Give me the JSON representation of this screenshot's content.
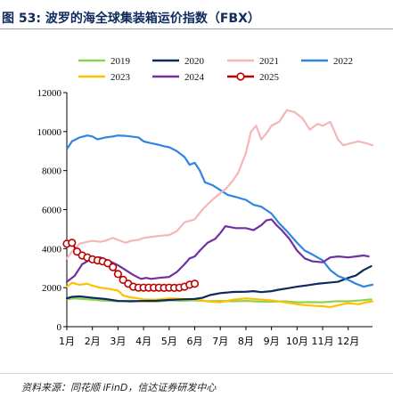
{
  "figure": {
    "title": "图 53:  波罗的海全球集装箱运价指数（FBX）",
    "source": "资料来源：同花顺 iFinD，信达证券研发中心"
  },
  "chart_data": {
    "type": "line",
    "title": "",
    "xlabel": "",
    "ylabel": "",
    "x_categories": [
      "1月",
      "2月",
      "3月",
      "4月",
      "5月",
      "6月",
      "7月",
      "8月",
      "9月",
      "10月",
      "11月",
      "12月"
    ],
    "x_domain": [
      1,
      12.95
    ],
    "ylim": [
      0,
      12000
    ],
    "yticks": [
      0,
      2000,
      4000,
      6000,
      8000,
      10000,
      12000
    ],
    "grid": false,
    "legend_position": "top",
    "series": [
      {
        "name": "2019",
        "color": "#92d050",
        "marker": "none",
        "points": [
          [
            1.0,
            1400
          ],
          [
            1.3,
            1450
          ],
          [
            1.6,
            1420
          ],
          [
            2.0,
            1380
          ],
          [
            2.4,
            1340
          ],
          [
            3.0,
            1300
          ],
          [
            3.5,
            1330
          ],
          [
            4.0,
            1300
          ],
          [
            4.5,
            1280
          ],
          [
            5.0,
            1350
          ],
          [
            5.5,
            1330
          ],
          [
            6.0,
            1350
          ],
          [
            6.5,
            1310
          ],
          [
            7.0,
            1320
          ],
          [
            7.5,
            1300
          ],
          [
            8.0,
            1320
          ],
          [
            8.5,
            1290
          ],
          [
            9.0,
            1280
          ],
          [
            9.5,
            1300
          ],
          [
            10.0,
            1250
          ],
          [
            10.5,
            1260
          ],
          [
            11.0,
            1250
          ],
          [
            11.5,
            1300
          ],
          [
            12.0,
            1300
          ],
          [
            12.5,
            1350
          ],
          [
            12.9,
            1400
          ]
        ]
      },
      {
        "name": "2020",
        "color": "#0d2a5e",
        "marker": "none",
        "points": [
          [
            1.0,
            1450
          ],
          [
            1.2,
            1530
          ],
          [
            1.5,
            1550
          ],
          [
            2.0,
            1480
          ],
          [
            2.5,
            1420
          ],
          [
            3.0,
            1320
          ],
          [
            3.5,
            1300
          ],
          [
            4.0,
            1320
          ],
          [
            4.5,
            1330
          ],
          [
            5.0,
            1370
          ],
          [
            5.5,
            1400
          ],
          [
            6.0,
            1420
          ],
          [
            6.3,
            1480
          ],
          [
            6.6,
            1620
          ],
          [
            7.0,
            1720
          ],
          [
            7.5,
            1780
          ],
          [
            8.0,
            1790
          ],
          [
            8.3,
            1820
          ],
          [
            8.6,
            1770
          ],
          [
            9.0,
            1820
          ],
          [
            9.3,
            1900
          ],
          [
            9.6,
            1960
          ],
          [
            10.0,
            2050
          ],
          [
            10.4,
            2120
          ],
          [
            10.8,
            2200
          ],
          [
            11.2,
            2250
          ],
          [
            11.6,
            2300
          ],
          [
            12.0,
            2500
          ],
          [
            12.3,
            2620
          ],
          [
            12.6,
            2900
          ],
          [
            12.9,
            3100
          ]
        ]
      },
      {
        "name": "2021",
        "color": "#f4b6b6",
        "marker": "none",
        "points": [
          [
            1.0,
            3500
          ],
          [
            1.2,
            3850
          ],
          [
            1.5,
            4250
          ],
          [
            1.8,
            4350
          ],
          [
            2.0,
            4400
          ],
          [
            2.3,
            4350
          ],
          [
            2.5,
            4400
          ],
          [
            2.8,
            4550
          ],
          [
            3.0,
            4450
          ],
          [
            3.3,
            4300
          ],
          [
            3.5,
            4400
          ],
          [
            3.8,
            4450
          ],
          [
            4.0,
            4550
          ],
          [
            4.3,
            4600
          ],
          [
            4.6,
            4650
          ],
          [
            5.0,
            4700
          ],
          [
            5.3,
            4900
          ],
          [
            5.6,
            5350
          ],
          [
            6.0,
            5500
          ],
          [
            6.3,
            6000
          ],
          [
            6.6,
            6400
          ],
          [
            7.0,
            6850
          ],
          [
            7.2,
            7050
          ],
          [
            7.5,
            7500
          ],
          [
            7.7,
            7900
          ],
          [
            8.0,
            8900
          ],
          [
            8.2,
            10000
          ],
          [
            8.4,
            10300
          ],
          [
            8.6,
            9600
          ],
          [
            8.8,
            9900
          ],
          [
            9.0,
            10300
          ],
          [
            9.3,
            10500
          ],
          [
            9.6,
            11100
          ],
          [
            9.9,
            11000
          ],
          [
            10.2,
            10700
          ],
          [
            10.5,
            10100
          ],
          [
            10.8,
            10400
          ],
          [
            11.0,
            10300
          ],
          [
            11.3,
            10500
          ],
          [
            11.6,
            9600
          ],
          [
            11.8,
            9300
          ],
          [
            12.1,
            9400
          ],
          [
            12.4,
            9500
          ],
          [
            12.7,
            9400
          ],
          [
            12.95,
            9300
          ]
        ]
      },
      {
        "name": "2022",
        "color": "#2e86de",
        "marker": "none",
        "points": [
          [
            1.0,
            9100
          ],
          [
            1.2,
            9500
          ],
          [
            1.5,
            9700
          ],
          [
            1.8,
            9800
          ],
          [
            2.0,
            9750
          ],
          [
            2.2,
            9600
          ],
          [
            2.5,
            9700
          ],
          [
            2.8,
            9750
          ],
          [
            3.0,
            9800
          ],
          [
            3.3,
            9780
          ],
          [
            3.5,
            9750
          ],
          [
            3.8,
            9700
          ],
          [
            4.0,
            9500
          ],
          [
            4.3,
            9400
          ],
          [
            4.5,
            9350
          ],
          [
            4.8,
            9250
          ],
          [
            5.0,
            9200
          ],
          [
            5.3,
            9000
          ],
          [
            5.6,
            8700
          ],
          [
            5.8,
            8300
          ],
          [
            6.0,
            8400
          ],
          [
            6.2,
            8000
          ],
          [
            6.4,
            7400
          ],
          [
            6.7,
            7250
          ],
          [
            7.0,
            7000
          ],
          [
            7.3,
            6750
          ],
          [
            7.6,
            6650
          ],
          [
            8.0,
            6500
          ],
          [
            8.3,
            6250
          ],
          [
            8.6,
            6150
          ],
          [
            9.0,
            5800
          ],
          [
            9.3,
            5300
          ],
          [
            9.6,
            4900
          ],
          [
            10.0,
            4300
          ],
          [
            10.3,
            3900
          ],
          [
            10.6,
            3700
          ],
          [
            11.0,
            3400
          ],
          [
            11.3,
            2900
          ],
          [
            11.6,
            2600
          ],
          [
            12.0,
            2400
          ],
          [
            12.3,
            2200
          ],
          [
            12.6,
            2050
          ],
          [
            12.95,
            2150
          ]
        ]
      },
      {
        "name": "2023",
        "color": "#ffc000",
        "marker": "none",
        "points": [
          [
            1.0,
            2050
          ],
          [
            1.2,
            2250
          ],
          [
            1.5,
            2150
          ],
          [
            1.8,
            2200
          ],
          [
            2.0,
            2100
          ],
          [
            2.3,
            2000
          ],
          [
            2.6,
            1950
          ],
          [
            3.0,
            1850
          ],
          [
            3.2,
            1600
          ],
          [
            3.5,
            1500
          ],
          [
            3.8,
            1450
          ],
          [
            4.0,
            1400
          ],
          [
            4.5,
            1380
          ],
          [
            5.0,
            1450
          ],
          [
            5.5,
            1420
          ],
          [
            6.0,
            1400
          ],
          [
            6.5,
            1300
          ],
          [
            7.0,
            1250
          ],
          [
            7.5,
            1380
          ],
          [
            8.0,
            1450
          ],
          [
            8.5,
            1400
          ],
          [
            9.0,
            1350
          ],
          [
            9.5,
            1250
          ],
          [
            10.0,
            1150
          ],
          [
            10.5,
            1080
          ],
          [
            11.0,
            1050
          ],
          [
            11.3,
            1000
          ],
          [
            11.6,
            1100
          ],
          [
            12.0,
            1200
          ],
          [
            12.4,
            1150
          ],
          [
            12.7,
            1250
          ],
          [
            12.95,
            1300
          ]
        ]
      },
      {
        "name": "2024",
        "color": "#7030a0",
        "marker": "none",
        "points": [
          [
            1.0,
            2300
          ],
          [
            1.3,
            2600
          ],
          [
            1.6,
            3200
          ],
          [
            2.0,
            3500
          ],
          [
            2.3,
            3550
          ],
          [
            2.6,
            3400
          ],
          [
            3.0,
            3150
          ],
          [
            3.3,
            2900
          ],
          [
            3.6,
            2650
          ],
          [
            3.9,
            2450
          ],
          [
            4.1,
            2500
          ],
          [
            4.3,
            2450
          ],
          [
            4.6,
            2500
          ],
          [
            5.0,
            2550
          ],
          [
            5.3,
            2800
          ],
          [
            5.6,
            3200
          ],
          [
            5.8,
            3500
          ],
          [
            6.0,
            3600
          ],
          [
            6.2,
            3900
          ],
          [
            6.5,
            4300
          ],
          [
            6.8,
            4500
          ],
          [
            7.0,
            4800
          ],
          [
            7.2,
            5150
          ],
          [
            7.4,
            5100
          ],
          [
            7.6,
            5050
          ],
          [
            8.0,
            5050
          ],
          [
            8.3,
            4950
          ],
          [
            8.6,
            5200
          ],
          [
            8.8,
            5450
          ],
          [
            9.0,
            5500
          ],
          [
            9.2,
            5200
          ],
          [
            9.4,
            4950
          ],
          [
            9.7,
            4500
          ],
          [
            10.0,
            3900
          ],
          [
            10.3,
            3500
          ],
          [
            10.6,
            3350
          ],
          [
            11.0,
            3300
          ],
          [
            11.3,
            3550
          ],
          [
            11.6,
            3600
          ],
          [
            12.0,
            3550
          ],
          [
            12.3,
            3600
          ],
          [
            12.6,
            3650
          ],
          [
            12.8,
            3600
          ]
        ]
      },
      {
        "name": "2025",
        "color": "#c00000",
        "marker": "circle",
        "points": [
          [
            1.0,
            4250
          ],
          [
            1.2,
            4300
          ],
          [
            1.4,
            3850
          ],
          [
            1.6,
            3650
          ],
          [
            1.8,
            3550
          ],
          [
            2.0,
            3450
          ],
          [
            2.2,
            3400
          ],
          [
            2.4,
            3350
          ],
          [
            2.6,
            3250
          ],
          [
            2.8,
            3050
          ],
          [
            3.0,
            2700
          ],
          [
            3.2,
            2400
          ],
          [
            3.4,
            2200
          ],
          [
            3.6,
            2050
          ],
          [
            3.8,
            2000
          ],
          [
            4.0,
            2000
          ],
          [
            4.2,
            2000
          ],
          [
            4.4,
            2000
          ],
          [
            4.6,
            2000
          ],
          [
            4.8,
            1990
          ],
          [
            5.0,
            2000
          ],
          [
            5.2,
            1990
          ],
          [
            5.4,
            2000
          ],
          [
            5.6,
            2050
          ],
          [
            5.8,
            2150
          ],
          [
            6.0,
            2200
          ]
        ]
      }
    ]
  }
}
